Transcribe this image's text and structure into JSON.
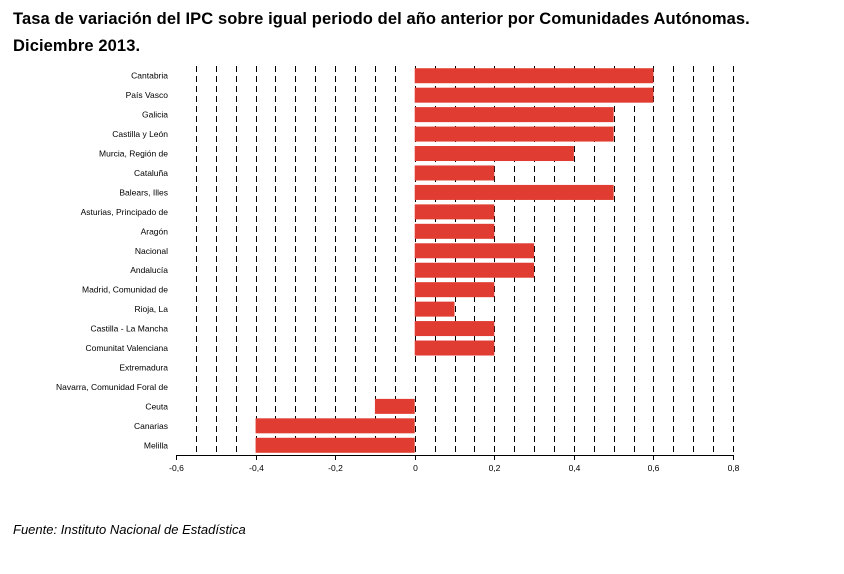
{
  "title": "Tasa de variación del IPC sobre igual periodo del año anterior por Comunidades Autónomas. Diciembre 2013.",
  "source": "Fuente: Instituto Nacional de Estadística",
  "colors": {
    "bar": "#e03c31",
    "grid": "#000000",
    "axis": "#000000"
  },
  "chart_data": {
    "type": "bar",
    "orientation": "horizontal",
    "title": "Tasa de variación del IPC sobre igual periodo del año anterior por Comunidades Autónomas. Diciembre 2013.",
    "categories": [
      "Cantabria",
      "País Vasco",
      "Galicia",
      "Castilla y León",
      "Murcia, Región de",
      "Cataluña",
      "Balears, Illes",
      "Asturias, Principado de",
      "Aragón",
      "Nacional",
      "Andalucía",
      "Madrid, Comunidad de",
      "Rioja, La",
      "Castilla - La Mancha",
      "Comunitat Valenciana",
      "Extremadura",
      "Navarra, Comunidad Foral de",
      "Ceuta",
      "Canarias",
      "Melilla"
    ],
    "values": [
      0.6,
      0.6,
      0.5,
      0.5,
      0.4,
      0.2,
      0.5,
      0.2,
      0.2,
      0.3,
      0.3,
      0.2,
      0.1,
      0.2,
      0.2,
      0.0,
      0.0,
      -0.1,
      -0.4,
      -0.4
    ],
    "xlim": [
      -0.6,
      0.8
    ],
    "xticks": [
      "-0,6",
      "-0,4",
      "-0,2",
      "0",
      "0,2",
      "0,4",
      "0,6",
      "0,8"
    ],
    "xtick_values": [
      -0.6,
      -0.4,
      -0.2,
      0,
      0.2,
      0.4,
      0.6,
      0.8
    ],
    "minor_grid_step": 0.05,
    "grid": true,
    "legend": "none"
  }
}
